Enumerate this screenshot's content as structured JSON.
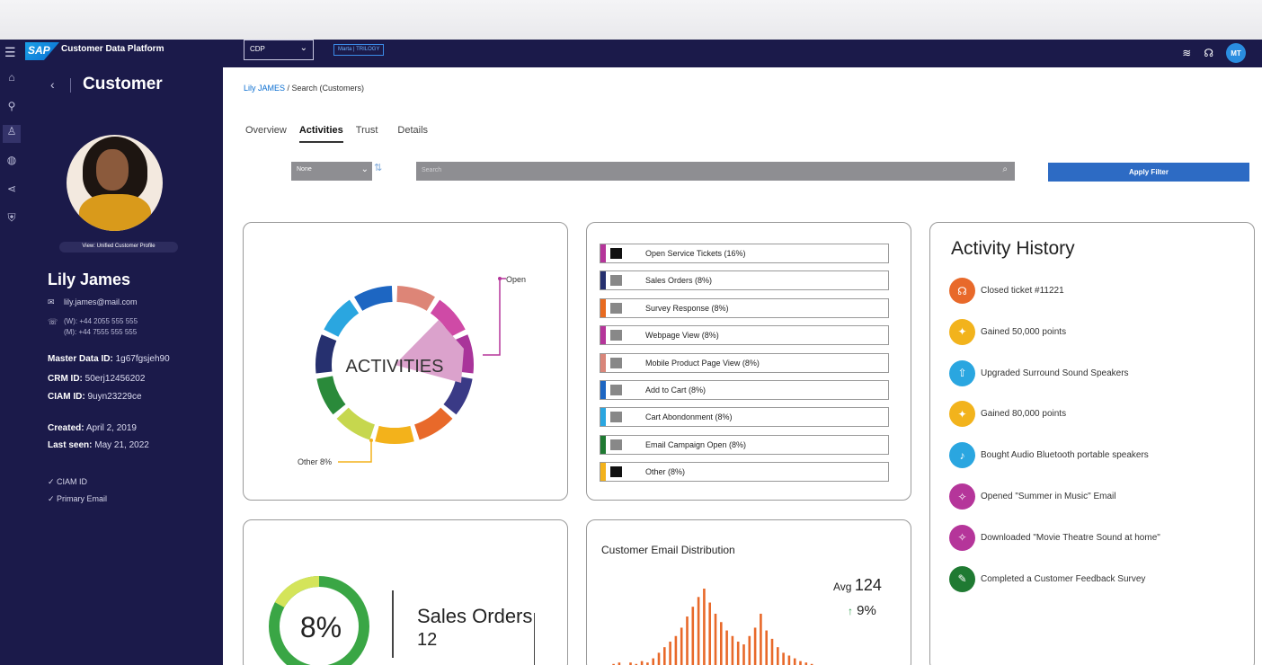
{
  "topbar": {
    "logo": "SAP",
    "app_title": "Customer Data Platform",
    "cdp_select": "CDP",
    "tenant_tag": "Marta | TRILOGY",
    "user_initials": "MT"
  },
  "profile": {
    "header": "Customer",
    "view_button": "View: Unified Customer Profile",
    "name": "Lily James",
    "email": "lily.james@mail.com",
    "phone_work": "(W): +44 2055 555 555",
    "phone_mobile": "(M): +44 7555 555 555",
    "master_data_label": "Master Data ID:",
    "master_data_value": "1g67fgsjeh90",
    "crm_label": "CRM ID:",
    "crm_value": "50erj12456202",
    "ciam_label": "CIAM ID:",
    "ciam_value": "9uyn23229ce",
    "created_label": "Created:",
    "created_value": "April 2, 2019",
    "last_seen_label": "Last seen:",
    "last_seen_value": "May 21, 2022",
    "checks": [
      "CIAM ID",
      "Primary Email"
    ]
  },
  "breadcrumb": {
    "link": "Lily JAMES",
    "rest": " / Search (Customers)"
  },
  "tabs": [
    "Overview",
    "Activities",
    "Trust",
    "Details"
  ],
  "active_tab": "Activities",
  "filters": {
    "select_value": "None",
    "search_placeholder": "Search",
    "apply_label": "Apply Filter"
  },
  "activities_chart": {
    "center_label": "ACTIVITIES",
    "callout_open": "Open",
    "callout_other": "Other 8%"
  },
  "legend": [
    {
      "label": "Open Service Tickets (16%)",
      "bar": "#b5359a",
      "sq": "#111111"
    },
    {
      "label": "Sales Orders (8%)",
      "bar": "#26306f",
      "sq": "#888888"
    },
    {
      "label": "Survey Response (8%)",
      "bar": "#e86a1f",
      "sq": "#888888"
    },
    {
      "label": "Webpage View (8%)",
      "bar": "#b5359a",
      "sq": "#888888"
    },
    {
      "label": "Mobile Product Page View (8%)",
      "bar": "#d9867a",
      "sq": "#888888"
    },
    {
      "label": "Add to Cart (8%)",
      "bar": "#1d66c2",
      "sq": "#888888"
    },
    {
      "label": "Cart Abondonment (8%)",
      "bar": "#2aa6e0",
      "sq": "#888888"
    },
    {
      "label": "Email Campaign Open (8%)",
      "bar": "#1f7a32",
      "sq": "#888888"
    },
    {
      "label": "Other (8%)",
      "bar": "#f3b21b",
      "sq": "#111111"
    }
  ],
  "activity_history": {
    "title": "Activity History",
    "items": [
      {
        "text": "Closed ticket #11221",
        "color": "#e8692a",
        "icon": "headset-icon"
      },
      {
        "text": "Gained 50,000 points",
        "color": "#f2b31c",
        "icon": "points-icon"
      },
      {
        "text": "Upgraded Surround Sound Speakers",
        "color": "#2aa6e0",
        "icon": "upgrade-icon"
      },
      {
        "text": "Gained 80,000 points",
        "color": "#f2b31c",
        "icon": "points-icon"
      },
      {
        "text": "Bought Audio Bluetooth portable speakers",
        "color": "#2aa6e0",
        "icon": "speaker-icon"
      },
      {
        "text": "Opened \"Summer in Music\" Email",
        "color": "#b5359a",
        "icon": "megaphone-icon"
      },
      {
        "text": "Downloaded \"Movie Theatre Sound at home\"",
        "color": "#b5359a",
        "icon": "megaphone-icon"
      },
      {
        "text": "Completed a Customer Feedback Survey",
        "color": "#1f7a32",
        "icon": "survey-icon"
      }
    ]
  },
  "sales_orders": {
    "percent": "8%",
    "title": "Sales Orders",
    "value": "12"
  },
  "email_distribution": {
    "title": "Customer Email Distribution",
    "avg_label": "Avg",
    "avg_value": "124",
    "trend_value": "9%"
  },
  "chart_data": {
    "type": "bar",
    "title": "Customer Email Distribution",
    "values": [
      2,
      4,
      5,
      3,
      5,
      4,
      6,
      5,
      8,
      12,
      16,
      20,
      24,
      30,
      38,
      45,
      52,
      58,
      48,
      40,
      34,
      28,
      24,
      20,
      18,
      24,
      30,
      40,
      28,
      22,
      16,
      12,
      10,
      8,
      6,
      5,
      4,
      3
    ]
  }
}
